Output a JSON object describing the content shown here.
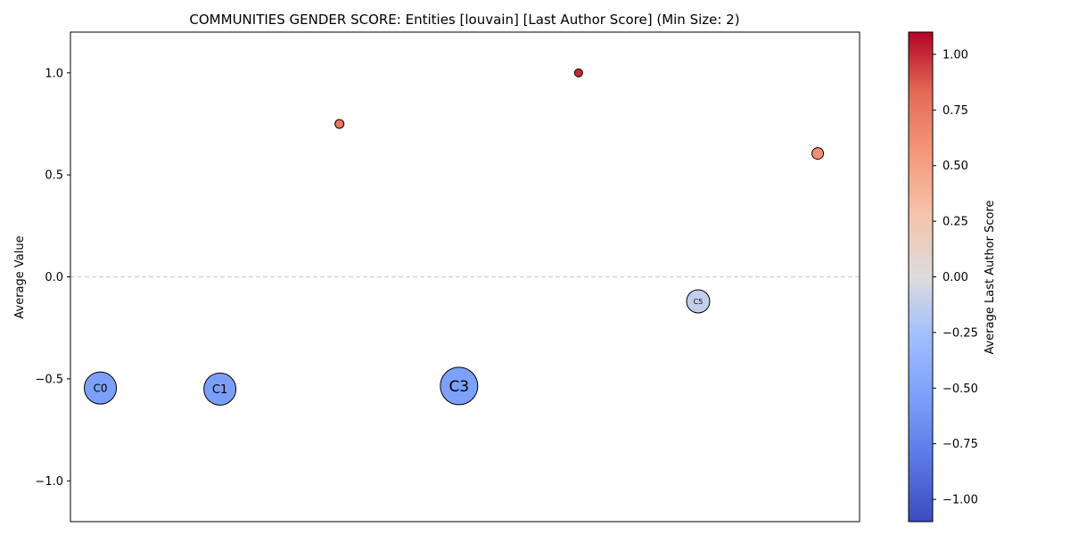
{
  "chart_data": {
    "type": "scatter",
    "title": "COMMUNITIES GENDER SCORE: Entities [louvain] [Last Author Score] (Min Size: 2)",
    "ylabel": "Average Value",
    "xlabel": "",
    "ylim": [
      -1.2,
      1.2
    ],
    "xlim": [
      -0.25,
      6.35
    ],
    "yticks": [
      -1.0,
      -0.5,
      0.0,
      0.5,
      1.0
    ],
    "ytick_labels": [
      "−1.0",
      "−0.5",
      "0.0",
      "0.5",
      "1.0"
    ],
    "reference_line": {
      "y": 0.0,
      "style": "dashed",
      "color": "#cccccc"
    },
    "grid": false,
    "points": [
      {
        "label": "C0",
        "x": 0,
        "y": -0.545,
        "color_value": -0.545,
        "size": 36
      },
      {
        "label": "C1",
        "x": 1,
        "y": -0.55,
        "color_value": -0.55,
        "size": 36
      },
      {
        "label": "",
        "x": 2,
        "y": 0.75,
        "color_value": 0.75,
        "size": 10
      },
      {
        "label": "C3",
        "x": 3,
        "y": -0.535,
        "color_value": -0.535,
        "size": 42
      },
      {
        "label": "",
        "x": 4,
        "y": 1.0,
        "color_value": 1.0,
        "size": 9
      },
      {
        "label": "C5",
        "x": 5,
        "y": -0.12,
        "color_value": -0.12,
        "size": 26
      },
      {
        "label": "",
        "x": 6,
        "y": 0.605,
        "color_value": 0.605,
        "size": 13
      }
    ],
    "point_label_font_sizes": [
      12,
      13,
      0,
      17,
      0,
      8,
      0
    ],
    "colorbar": {
      "label": "Average Last Author Score",
      "colormap": "coolwarm",
      "range": [
        -1.1,
        1.1
      ],
      "ticks": [
        -1.0,
        -0.75,
        -0.5,
        -0.25,
        0.0,
        0.25,
        0.5,
        0.75,
        1.0
      ],
      "tick_labels": [
        "−1.00",
        "−0.75",
        "−0.50",
        "−0.25",
        "0.00",
        "0.25",
        "0.50",
        "0.75",
        "1.00"
      ]
    }
  }
}
